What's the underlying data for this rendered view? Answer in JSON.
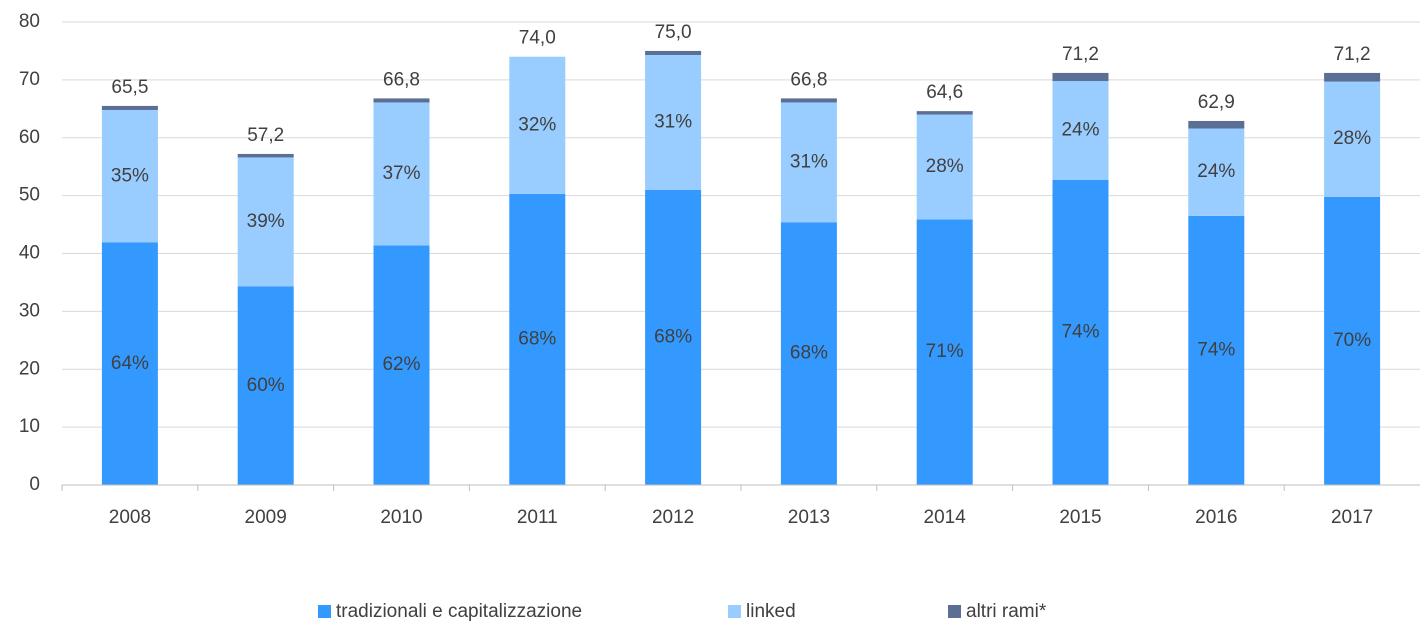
{
  "chart_data": {
    "type": "stacked_bar",
    "categories": [
      "2008",
      "2009",
      "2010",
      "2011",
      "2012",
      "2013",
      "2014",
      "2015",
      "2016",
      "2017"
    ],
    "series": [
      {
        "name": "tradizionali e capitalizzazione",
        "color": "#3399ff",
        "values": [
          41.9,
          34.3,
          41.4,
          50.3,
          51.0,
          45.4,
          45.9,
          52.7,
          46.5,
          49.8
        ],
        "shares": [
          "64%",
          "60%",
          "62%",
          "68%",
          "68%",
          "68%",
          "71%",
          "74%",
          "74%",
          "70%"
        ]
      },
      {
        "name": "linked",
        "color": "#99ccff",
        "values": [
          22.9,
          22.3,
          24.7,
          23.7,
          23.3,
          20.7,
          18.1,
          17.1,
          15.1,
          19.9
        ],
        "shares": [
          "35%",
          "39%",
          "37%",
          "32%",
          "31%",
          "31%",
          "28%",
          "24%",
          "24%",
          "28%"
        ]
      },
      {
        "name": "altri rami*",
        "color": "#5b6f95",
        "values": [
          0.7,
          0.6,
          0.7,
          0,
          0.7,
          0.7,
          0.6,
          1.4,
          1.3,
          1.5
        ]
      }
    ],
    "totals": [
      65.5,
      57.2,
      66.8,
      74.0,
      75.0,
      66.8,
      64.6,
      71.2,
      62.9,
      71.2
    ],
    "total_labels": [
      "65,5",
      "57,2",
      "66,8",
      "74,0",
      "75,0",
      "66,8",
      "64,6",
      "71,2",
      "62,9",
      "71,2"
    ],
    "ylim": [
      0,
      80
    ],
    "yticks": [
      0,
      10,
      20,
      30,
      40,
      50,
      60,
      70,
      80
    ],
    "grid": true,
    "legend": "bottom"
  }
}
